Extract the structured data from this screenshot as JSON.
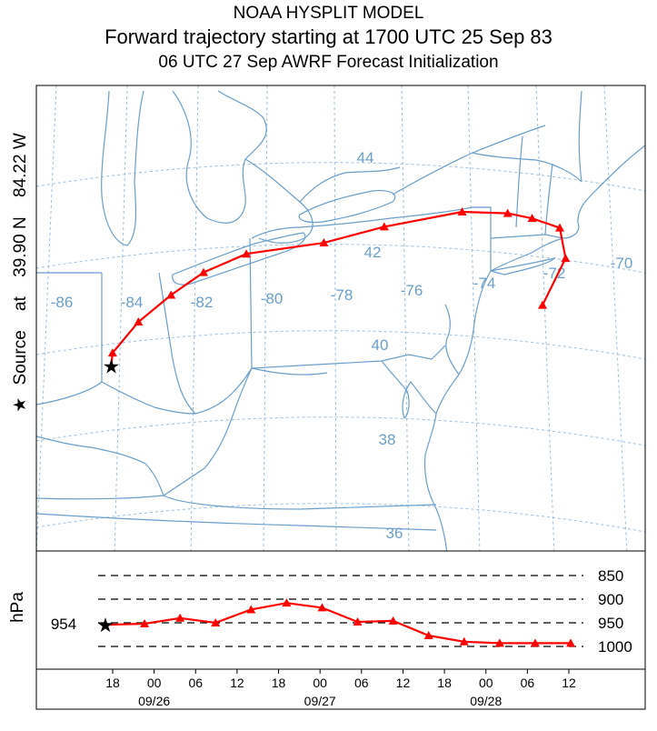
{
  "header": {
    "line1": "NOAA HYSPLIT MODEL",
    "line2": "Forward trajectory starting at 1700 UTC 25 Sep 83",
    "line3": "06 UTC 27 Sep    AWRF  Forecast Initialization"
  },
  "side_label": {
    "source_text": "Source",
    "at_text": "at",
    "lat": "39.90 N",
    "lon": "84.22 W",
    "star": "★"
  },
  "map": {
    "lon_labels": [
      "-86",
      "-84",
      "-82",
      "-80",
      "-78",
      "-76",
      "-74",
      "-72",
      "-70"
    ],
    "lat_labels": [
      "44",
      "42",
      "40",
      "38",
      "36"
    ]
  },
  "vertical": {
    "axis_label": "hPa",
    "start_value": "954",
    "levels": [
      "850",
      "900",
      "950",
      "1000"
    ]
  },
  "time_axis": {
    "hours": [
      "18",
      "00",
      "06",
      "12",
      "18",
      "00",
      "06",
      "12",
      "18",
      "00",
      "06",
      "12"
    ],
    "dates": [
      "09/26",
      "09/27",
      "09/28"
    ]
  },
  "chart_data": {
    "type": "line",
    "title": "Forward trajectory starting at 1700 UTC 25 Sep 83",
    "series": [
      {
        "name": "trajectory",
        "color": "#ff0000",
        "lon": [
          -84.22,
          -84.2,
          -83.5,
          -82.6,
          -81.7,
          -80.5,
          -78.3,
          -76.6,
          -74.4,
          -73.1,
          -72.4,
          -71.6,
          -71.4,
          -72.0
        ],
        "lat": [
          39.9,
          40.2,
          40.9,
          41.5,
          42.0,
          42.4,
          42.6,
          43.0,
          43.4,
          43.4,
          43.3,
          43.1,
          42.4,
          41.3
        ],
        "pressure_hpa": [
          954,
          952,
          940,
          950,
          922,
          908,
          918,
          948,
          946,
          977,
          990,
          993,
          993,
          993
        ]
      }
    ],
    "time_ticks": [
      "18",
      "00",
      "06",
      "12",
      "18",
      "00",
      "06",
      "12",
      "18",
      "00",
      "06",
      "12"
    ],
    "ylim": [
      1000,
      850
    ],
    "ylabel": "hPa"
  }
}
